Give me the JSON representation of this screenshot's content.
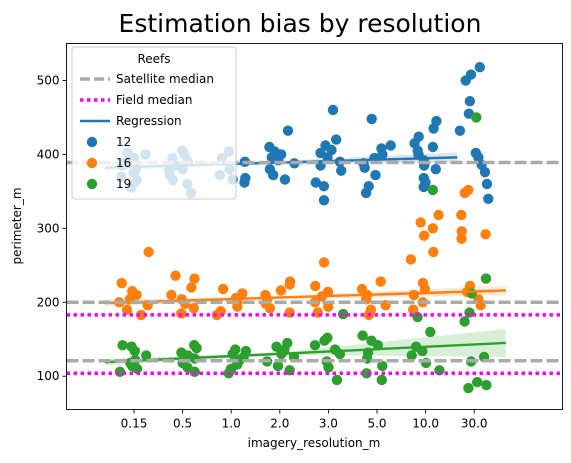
{
  "chart_data": {
    "type": "scatter",
    "title": "Estimation bias by resolution",
    "xlabel": "imagery_resolution_m",
    "ylabel": "perimeter_m",
    "categories": [
      "0.15",
      "0.5",
      "1.0",
      "2.0",
      "3.0",
      "5.0",
      "10.0",
      "30.0"
    ],
    "ylim": [
      55,
      550
    ],
    "yticks": [
      "100",
      "200",
      "300",
      "400",
      "500"
    ],
    "grid": false,
    "legend": {
      "title": "Reefs",
      "placement": "top-left",
      "entries": [
        "Satellite median",
        "Field median",
        "Regression",
        "12",
        "16",
        "19"
      ]
    },
    "reference_lines": [
      {
        "name": "Satellite median",
        "style": "dashed",
        "color": "#aaaaaa",
        "values": [
          389,
          200,
          121
        ]
      },
      {
        "name": "Field median",
        "style": "dotted",
        "color": "#ff00ff",
        "values": [
          183,
          104
        ]
      }
    ],
    "series": [
      {
        "name": "12",
        "color": "#1f77b4",
        "points": [
          [
            0,
            [
              375,
              380,
              385,
              390,
              360,
              395,
              370,
              400,
              365,
              355,
              402
            ]
          ],
          [
            1,
            [
              348,
              360,
              372,
              380,
              385,
              390,
              395,
              400,
              405,
              365,
              378
            ]
          ],
          [
            2,
            [
              362,
              368,
              372,
              380,
              390,
              395,
              404,
              366
            ]
          ],
          [
            3,
            [
              366,
              372,
              380,
              388,
              392,
              396,
              400,
              404,
              410,
              432
            ]
          ],
          [
            4,
            [
              338,
              357,
              362,
              378,
              385,
              390,
              396,
              402,
              406,
              412,
              420,
              460
            ]
          ],
          [
            5,
            [
              348,
              357,
              372,
              382,
              388,
              395,
              400,
              408,
              412,
              448
            ]
          ],
          [
            6,
            [
              356,
              362,
              368,
              380,
              385,
              392,
              400,
              405,
              410,
              415,
              424,
              435,
              445
            ]
          ],
          [
            7,
            [
              340,
              360,
              376,
              386,
              396,
              402,
              432,
              455,
              472,
              500,
              508,
              518
            ]
          ]
        ],
        "regression": {
          "x_start": -0.6,
          "x_end": 6.65,
          "y_start": 382,
          "y_end": 396
        }
      },
      {
        "name": "16",
        "color": "#ff7f0e",
        "points": [
          [
            0,
            [
              183,
              190,
              196,
              200,
              204,
              210,
              215,
              226,
              268
            ]
          ],
          [
            1,
            [
              185,
              192,
              198,
              204,
              210,
              220,
              232,
              236
            ]
          ],
          [
            2,
            [
              183,
              188,
              194,
              200,
              206,
              212,
              218
            ]
          ],
          [
            3,
            [
              186,
              192,
              198,
              204,
              210,
              216,
              224,
              228
            ]
          ],
          [
            4,
            [
              186,
              194,
              200,
              208,
              214,
              222,
              254
            ]
          ],
          [
            5,
            [
              183,
              190,
              196,
              204,
              210,
              218,
              228
            ]
          ],
          [
            6,
            [
              190,
              200,
              210,
              218,
              226,
              258,
              268,
              290,
              300,
              308,
              318
            ]
          ],
          [
            7,
            [
              196,
              204,
              214,
              222,
              286,
              292,
              296,
              318,
              348,
              352
            ]
          ]
        ],
        "regression": {
          "x_start": -0.6,
          "x_end": 7.65,
          "y_start": 199,
          "y_end": 216
        }
      },
      {
        "name": "19",
        "color": "#2ca02c",
        "points": [
          [
            0,
            [
              106,
              110,
              114,
              118,
              122,
              128,
              134,
              140,
              142
            ]
          ],
          [
            1,
            [
              106,
              112,
              118,
              124,
              128,
              132,
              138,
              142
            ]
          ],
          [
            2,
            [
              104,
              110,
              116,
              122,
              126,
              130,
              134,
              136
            ]
          ],
          [
            3,
            [
              108,
              114,
              120,
              126,
              130,
              136,
              140,
              145
            ]
          ],
          [
            4,
            [
              95,
              112,
              120,
              130,
              136,
              142,
              148,
              152,
              184
            ]
          ],
          [
            5,
            [
              95,
              104,
              114,
              124,
              132,
              142,
              148,
              155
            ]
          ],
          [
            6,
            [
              108,
              118,
              128,
              134,
              140,
              160,
              180,
              352
            ]
          ],
          [
            7,
            [
              84,
              88,
              92,
              120,
              126,
              174,
              186,
              212,
              232,
              450
            ]
          ]
        ],
        "regression": {
          "x_start": -0.6,
          "x_end": 7.65,
          "y_start": 119,
          "y_end": 145
        }
      }
    ]
  }
}
